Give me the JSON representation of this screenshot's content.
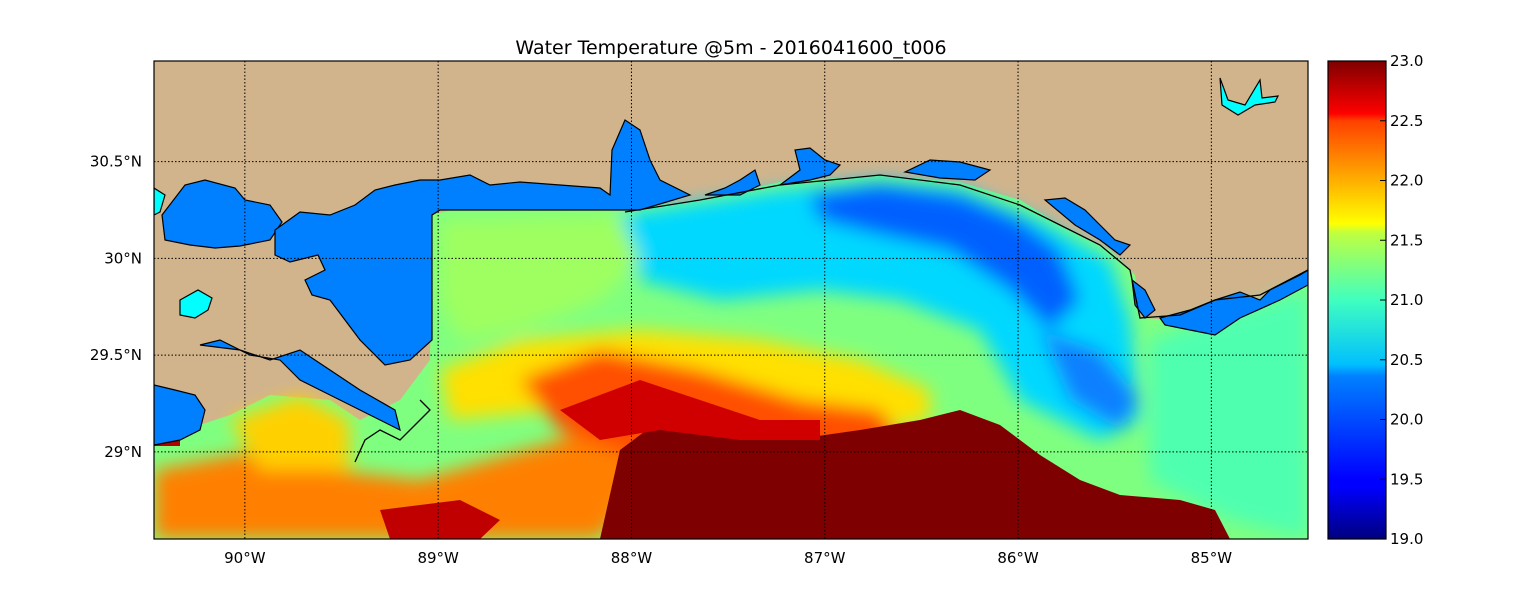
{
  "title": "Water Temperature @5m - 2016041600_t006",
  "map": {
    "lon_range": [
      -90.47,
      -84.5
    ],
    "lat_range": [
      28.55,
      31.02
    ],
    "grid": true,
    "land_color": "#d1b48c",
    "inland_water_color": "#007fff",
    "lake_highlight_color": "#00ffff",
    "x_ticks": [
      {
        "value": -90,
        "label": "90°W"
      },
      {
        "value": -89,
        "label": "89°W"
      },
      {
        "value": -88,
        "label": "88°W"
      },
      {
        "value": -87,
        "label": "87°W"
      },
      {
        "value": -86,
        "label": "86°W"
      },
      {
        "value": -85,
        "label": "85°W"
      }
    ],
    "y_ticks": [
      {
        "value": 30.5,
        "label": "30.5°N"
      },
      {
        "value": 30.0,
        "label": "30°N"
      },
      {
        "value": 29.5,
        "label": "29.5°N"
      },
      {
        "value": 29.0,
        "label": "29°N"
      }
    ]
  },
  "colorbar": {
    "colormap": "jet",
    "min": 19.0,
    "max": 23.0,
    "ticks": [
      {
        "value": 23.0,
        "label": "23.0"
      },
      {
        "value": 22.5,
        "label": "22.5"
      },
      {
        "value": 22.0,
        "label": "22.0"
      },
      {
        "value": 21.5,
        "label": "21.5"
      },
      {
        "value": 21.0,
        "label": "21.0"
      },
      {
        "value": 20.5,
        "label": "20.5"
      },
      {
        "value": 20.0,
        "label": "20.0"
      },
      {
        "value": 19.5,
        "label": "19.5"
      },
      {
        "value": 19.0,
        "label": "19.0"
      }
    ]
  }
}
